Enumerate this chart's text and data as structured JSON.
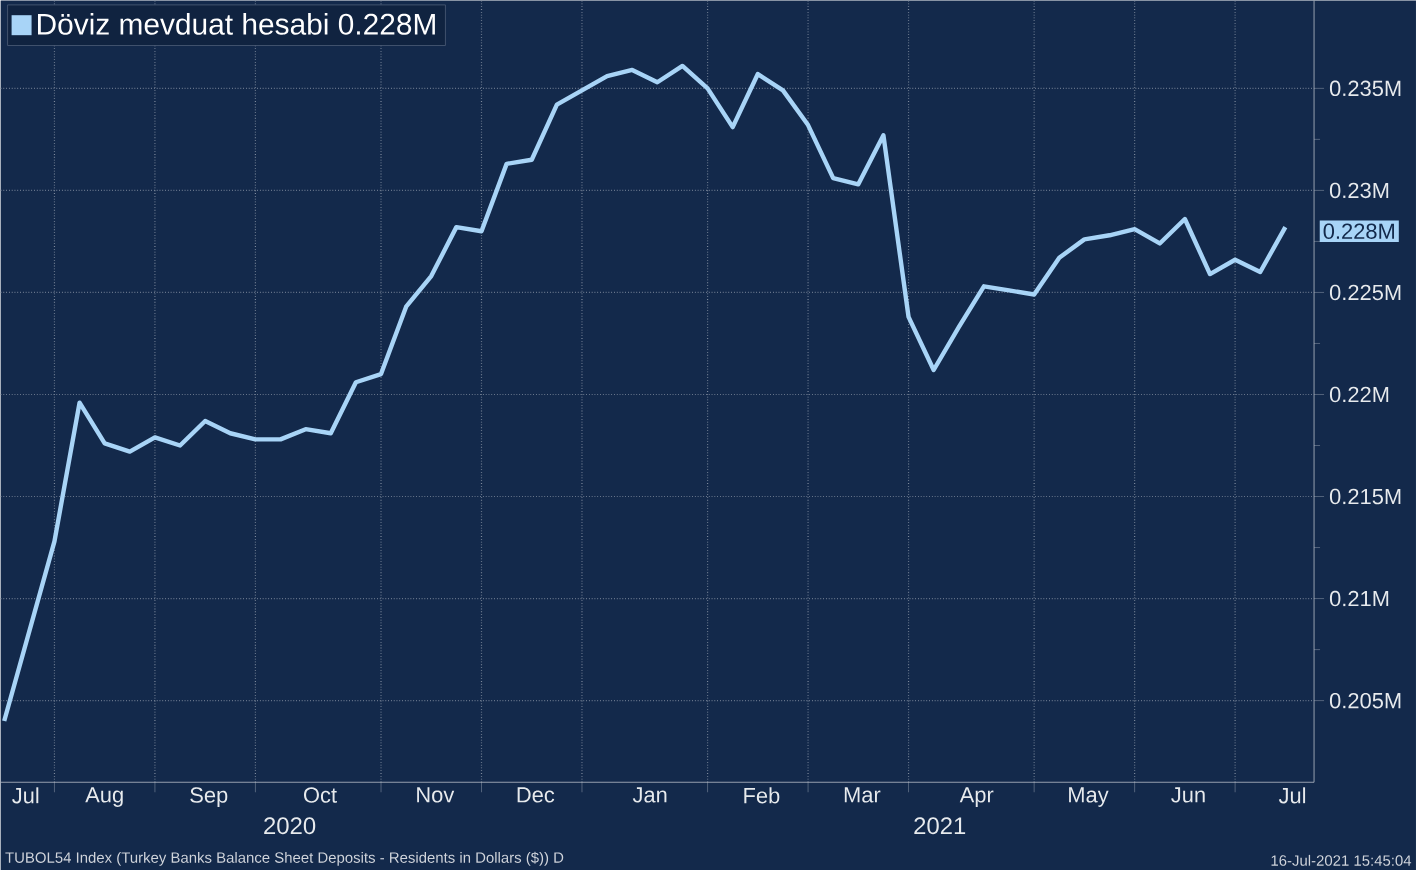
{
  "chart_data": {
    "type": "line",
    "x": [
      "2020-07-24",
      "2020-08-07",
      "2020-08-14",
      "2020-08-21",
      "2020-08-28",
      "2020-09-04",
      "2020-09-11",
      "2020-09-18",
      "2020-09-25",
      "2020-10-02",
      "2020-10-09",
      "2020-10-16",
      "2020-10-23",
      "2020-10-30",
      "2020-11-06",
      "2020-11-13",
      "2020-11-20",
      "2020-11-27",
      "2020-12-04",
      "2020-12-11",
      "2020-12-18",
      "2020-12-25",
      "2021-01-01",
      "2021-01-08",
      "2021-01-15",
      "2021-01-22",
      "2021-01-29",
      "2021-02-05",
      "2021-02-12",
      "2021-02-19",
      "2021-02-26",
      "2021-03-05",
      "2021-03-12",
      "2021-03-19",
      "2021-03-26",
      "2021-04-02",
      "2021-04-09",
      "2021-04-16",
      "2021-04-23",
      "2021-04-30",
      "2021-05-07",
      "2021-05-14",
      "2021-05-21",
      "2021-05-28",
      "2021-06-04",
      "2021-06-11",
      "2021-06-18",
      "2021-06-25",
      "2021-07-02",
      "2021-07-09",
      "2021-07-16"
    ],
    "series": [
      {
        "name": "Döviz mevduat hesabi 0.228M",
        "color": "#a8d4f7",
        "values": [
          0.204,
          0.2128,
          0.2196,
          0.2176,
          0.2172,
          0.2179,
          0.2175,
          0.2187,
          0.2181,
          0.2178,
          0.2178,
          0.2183,
          0.2181,
          0.2206,
          0.221,
          0.2243,
          0.2258,
          0.2282,
          0.228,
          0.2313,
          0.2315,
          0.2342,
          0.2349,
          0.2356,
          0.2359,
          0.2353,
          0.2361,
          0.235,
          0.2331,
          0.2357,
          0.2349,
          0.2332,
          0.2306,
          0.2303,
          0.2327,
          0.2238,
          0.2212,
          0.2233,
          0.2253,
          0.2251,
          0.2249,
          0.2267,
          0.2276,
          0.2278,
          0.2281,
          0.2274,
          0.2286,
          0.2259,
          0.2266,
          0.226,
          0.2282
        ]
      }
    ],
    "xlim": [
      "2020-07-23",
      "2021-07-24"
    ],
    "xticks": [
      {
        "value": "2020-07-30",
        "label": "Jul"
      },
      {
        "value": "2020-08-07",
        "label": null
      },
      {
        "value": "2020-08-21",
        "label": "Aug"
      },
      {
        "value": "2020-09-04",
        "label": null
      },
      {
        "value": "2020-09-19",
        "label": "Sep"
      },
      {
        "value": "2020-10-02",
        "label": null
      },
      {
        "value": "2020-10-20",
        "label": "Oct"
      },
      {
        "value": "2020-11-06",
        "label": null
      },
      {
        "value": "2020-11-21",
        "label": "Nov"
      },
      {
        "value": "2020-12-04",
        "label": null
      },
      {
        "value": "2020-12-19",
        "label": "Dec"
      },
      {
        "value": "2021-01-01",
        "label": null
      },
      {
        "value": "2021-01-20",
        "label": "Jan"
      },
      {
        "value": "2021-02-05",
        "label": null
      },
      {
        "value": "2021-02-20",
        "label": "Feb"
      },
      {
        "value": "2021-03-05",
        "label": null
      },
      {
        "value": "2021-03-20",
        "label": "Mar"
      },
      {
        "value": "2021-04-02",
        "label": null
      },
      {
        "value": "2021-04-21",
        "label": "Apr"
      },
      {
        "value": "2021-05-07",
        "label": null
      },
      {
        "value": "2021-05-22",
        "label": "May"
      },
      {
        "value": "2021-06-04",
        "label": null
      },
      {
        "value": "2021-06-19",
        "label": "Jun"
      },
      {
        "value": "2021-07-02",
        "label": null
      },
      {
        "value": "2021-07-18",
        "label": "Jul"
      }
    ],
    "ylim": [
      0.201,
      0.2393
    ],
    "yticks": [
      {
        "value": 0.205,
        "label": "0.205M"
      },
      {
        "value": 0.21,
        "label": "0.21M"
      },
      {
        "value": 0.215,
        "label": "0.215M"
      },
      {
        "value": 0.22,
        "label": "0.22M"
      },
      {
        "value": 0.225,
        "label": "0.225M"
      },
      {
        "value": 0.23,
        "label": "0.23M"
      },
      {
        "value": 0.235,
        "label": "0.235M"
      }
    ],
    "grid": true,
    "legend": "top left",
    "marker": "none",
    "line_style": "solid",
    "annotations": [
      "2020",
      "2021",
      "TUBOL54 Index (Turkey Banks Balance Sheet Deposits - Residents in Dollars ($)) D",
      "16-Jul-2021 15:45:04",
      {
        "text": "0.228M",
        "x": "2021-07-16",
        "y": 0.228
      }
    ]
  }
}
